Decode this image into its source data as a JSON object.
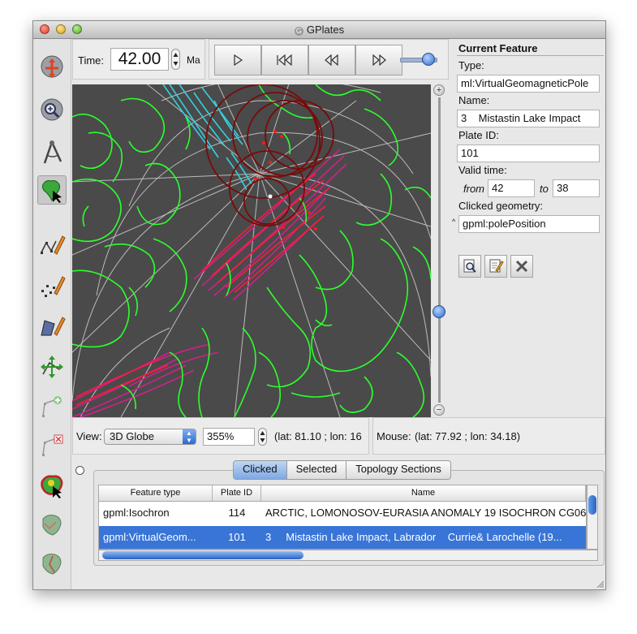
{
  "window": {
    "title": "GPlates"
  },
  "time": {
    "label": "Time:",
    "value": "42.00",
    "unit": "Ma"
  },
  "current_feature": {
    "header": "Current Feature",
    "type_label": "Type:",
    "type_value": "ml:VirtualGeomagneticPole",
    "name_label": "Name:",
    "name_value": "3    Mistastin Lake Impact",
    "plate_id_label": "Plate ID:",
    "plate_id_value": "101",
    "valid_time_label": "Valid time:",
    "from_label": "from",
    "from_value": "42",
    "to_label": "to",
    "to_value": "38",
    "clicked_geometry_label": "Clicked geometry:",
    "clicked_geometry_value": "gpml:polePosition"
  },
  "view": {
    "label": "View:",
    "projection": "3D Globe",
    "zoom": "355%",
    "camera_coords": "(lat: 81.10 ; lon: 16",
    "mouse_label": "Mouse:",
    "mouse_coords": "(lat: 77.92 ; lon: 34.18)"
  },
  "tabs": [
    "Clicked",
    "Selected",
    "Topology Sections"
  ],
  "table": {
    "headers": [
      "Feature type",
      "Plate ID",
      "Name"
    ],
    "rows": [
      {
        "type": "gpml:Isochron",
        "plate_id": "114",
        "name": "ARCTIC, LOMONOSOV-EURASIA ANOMALY 19 ISOCHRON CG06"
      },
      {
        "type": "gpml:VirtualGeom...",
        "plate_id": "101",
        "name": "3     Mistastin Lake Impact, Labrador    Currie& Larochelle (19..."
      }
    ]
  },
  "colors": {
    "globe_bg": "#4a4a4a",
    "coastline": "#2cff2c",
    "isochron_cyan": "#33d0e0",
    "isochron_magenta": "#d0208a",
    "pole_red": "#ff1a1a",
    "pole_circle": "#7a0a0a",
    "selection": "#3875d7"
  },
  "tools": [
    "drag-globe-icon",
    "zoom-globe-icon",
    "measure-distance-icon",
    "choose-feature-icon",
    "digitise-polyline-icon",
    "digitise-multipoint-icon",
    "digitise-polygon-icon",
    "move-vertex-icon",
    "insert-vertex-icon",
    "delete-vertex-icon",
    "build-boundary-icon",
    "edit-topology-icon",
    "split-feature-icon"
  ]
}
